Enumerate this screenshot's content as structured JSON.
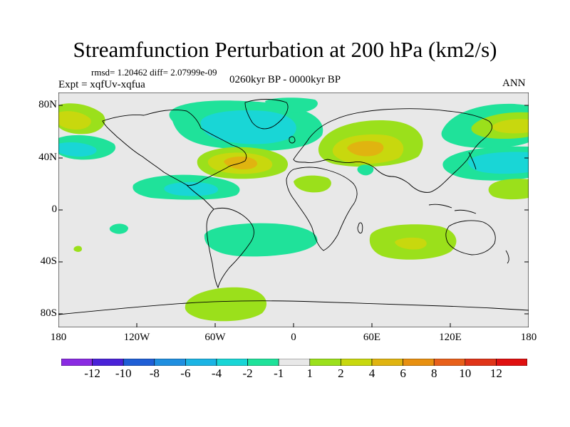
{
  "title": "Streamfunction Perturbation at 200 hPa (km2/s)",
  "rmsd_line": "rmsd= 1.20462 diff= 2.07999e-09",
  "expt_line": "Expt = xqfUv-xqfua",
  "period": "0260kyr BP - 0000kyr BP",
  "season": "ANN",
  "lat_labels": [
    "80N",
    "40N",
    "0",
    "40S",
    "80S"
  ],
  "lon_labels": [
    "180",
    "120W",
    "60W",
    "0",
    "60E",
    "120E",
    "180"
  ],
  "colorbar": {
    "labels": [
      "-12",
      "-10",
      "-8",
      "-6",
      "-4",
      "-2",
      "-1",
      "1",
      "2",
      "4",
      "6",
      "8",
      "10",
      "12"
    ],
    "colors": [
      "#8a2be2",
      "#4a22d8",
      "#1f5fd6",
      "#1f8fe0",
      "#1bb4e4",
      "#19d6d6",
      "#1fe29a",
      "#e8e8e8",
      "#9be01b",
      "#c8d80e",
      "#e0b410",
      "#e89010",
      "#e8601a",
      "#e03418",
      "#e01010"
    ]
  },
  "colors": {
    "ocean_bg": "#e8e8e8",
    "coast": "#000000"
  }
}
